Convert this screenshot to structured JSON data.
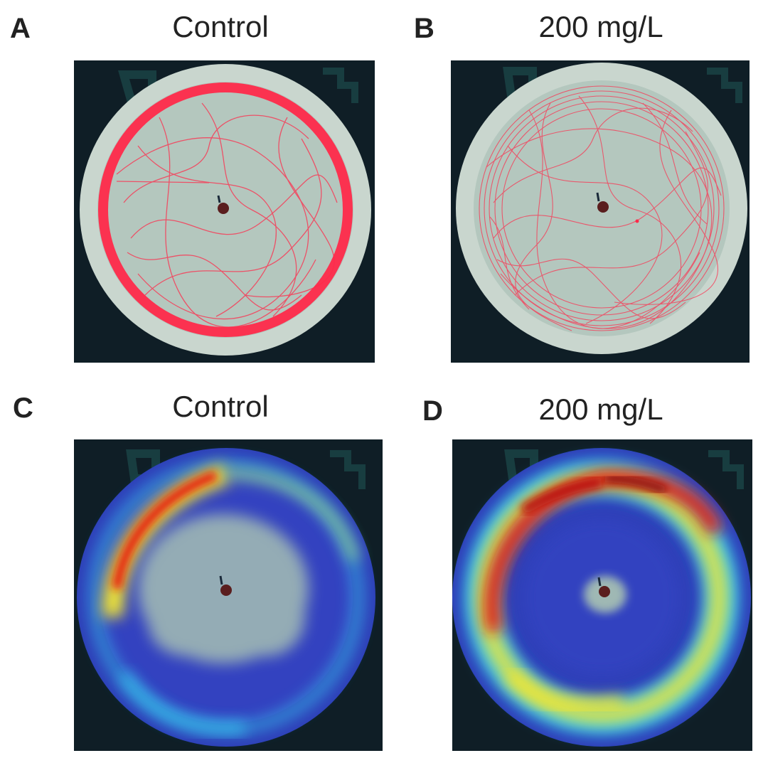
{
  "figure": {
    "panels": [
      {
        "letter": "A",
        "title": "Control",
        "view": "trajectory-trace"
      },
      {
        "letter": "B",
        "title": "200 mg/L",
        "view": "trajectory-trace"
      },
      {
        "letter": "C",
        "title": "Control",
        "view": "heatmap"
      },
      {
        "letter": "D",
        "title": "200 mg/L",
        "view": "heatmap"
      }
    ],
    "colors": {
      "background": "#0f1e26",
      "dish": "#b7c9bf",
      "dish_rim": "#c9d6ce",
      "trace": "#ff2a4a",
      "heat_low": "#2e3fb8",
      "heat_mid": "#37c8f0",
      "heat_warm": "#f2e630",
      "heat_high": "#e61e10"
    }
  }
}
